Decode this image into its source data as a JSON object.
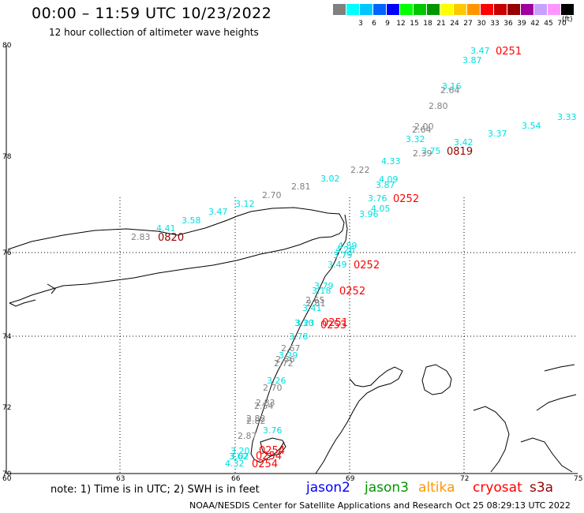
{
  "header": {
    "title": "00:00 – 11:59 UTC 10/23/2022",
    "subtitle": "12 hour collection of altimeter wave heights"
  },
  "legend": {
    "unit": "(ft)",
    "bins": [
      {
        "label": "",
        "color": "#808080"
      },
      {
        "label": "3",
        "color": "#00ffff"
      },
      {
        "label": "6",
        "color": "#00c8ff"
      },
      {
        "label": "9",
        "color": "#0064ff"
      },
      {
        "label": "12",
        "color": "#0000ff"
      },
      {
        "label": "15",
        "color": "#00ff00"
      },
      {
        "label": "18",
        "color": "#00c800"
      },
      {
        "label": "21",
        "color": "#009600"
      },
      {
        "label": "24",
        "color": "#ffff00"
      },
      {
        "label": "27",
        "color": "#ffc800"
      },
      {
        "label": "30",
        "color": "#ff9600"
      },
      {
        "label": "33",
        "color": "#ff0000"
      },
      {
        "label": "36",
        "color": "#c80000"
      },
      {
        "label": "39",
        "color": "#960000"
      },
      {
        "label": "42",
        "color": "#a000a0"
      },
      {
        "label": "45",
        "color": "#c8a0ff"
      },
      {
        "label": "70",
        "color": "#ff96ff"
      },
      {
        "label": "",
        "color": "#000000"
      }
    ]
  },
  "axes": {
    "lat_labels": [
      "80",
      "78",
      "76",
      "74",
      "72",
      "70"
    ],
    "lon_labels": [
      "60",
      "63",
      "66",
      "69",
      "72",
      "75"
    ]
  },
  "wave_heights": [
    {
      "v": "3.47",
      "c": "#00e0e0"
    },
    {
      "v": "3.87",
      "c": "#00e0e0"
    },
    {
      "v": "3.16",
      "c": "#00e0e0"
    },
    {
      "v": "2.64",
      "c": "#808080"
    },
    {
      "v": "2.80",
      "c": "#808080"
    },
    {
      "v": "3.33",
      "c": "#00e0e0"
    },
    {
      "v": "3.54",
      "c": "#00e0e0"
    },
    {
      "v": "2.00",
      "c": "#808080"
    },
    {
      "v": "2.64",
      "c": "#808080"
    },
    {
      "v": "3.32",
      "c": "#00e0e0"
    },
    {
      "v": "3.37",
      "c": "#00e0e0"
    },
    {
      "v": "3.42",
      "c": "#00e0e0"
    },
    {
      "v": "2.39",
      "c": "#808080"
    },
    {
      "v": "3.75",
      "c": "#00e0e0"
    },
    {
      "v": "4.33",
      "c": "#00e0e0"
    },
    {
      "v": "2.22",
      "c": "#808080"
    },
    {
      "v": "3.02",
      "c": "#00e0e0"
    },
    {
      "v": "4.09",
      "c": "#00e0e0"
    },
    {
      "v": "3.87",
      "c": "#00e0e0"
    },
    {
      "v": "2.81",
      "c": "#808080"
    },
    {
      "v": "2.70",
      "c": "#808080"
    },
    {
      "v": "3.76",
      "c": "#00e0e0"
    },
    {
      "v": "4.05",
      "c": "#00e0e0"
    },
    {
      "v": "3.96",
      "c": "#00e0e0"
    },
    {
      "v": "3.12",
      "c": "#00e0e0"
    },
    {
      "v": "3.47",
      "c": "#00e0e0"
    },
    {
      "v": "3.58",
      "c": "#00e0e0"
    },
    {
      "v": "4.41",
      "c": "#00e0e0"
    },
    {
      "v": "2.83",
      "c": "#808080"
    },
    {
      "v": "4.89",
      "c": "#00e0e0"
    },
    {
      "v": "4.26",
      "c": "#00e0e0"
    },
    {
      "v": "3.79",
      "c": "#00e0e0"
    },
    {
      "v": "3.49",
      "c": "#00e0e0"
    },
    {
      "v": "3.79",
      "c": "#00e0e0"
    },
    {
      "v": "3.18",
      "c": "#00e0e0"
    },
    {
      "v": "2.65",
      "c": "#808080"
    },
    {
      "v": "2.81",
      "c": "#808080"
    },
    {
      "v": "3.41",
      "c": "#00e0e0"
    },
    {
      "v": "3.30",
      "c": "#00e0e0"
    },
    {
      "v": "3.23",
      "c": "#00e0e0"
    },
    {
      "v": "3.78",
      "c": "#00e0e0"
    },
    {
      "v": "2.67",
      "c": "#808080"
    },
    {
      "v": "3.29",
      "c": "#00e0e0"
    },
    {
      "v": "2.56",
      "c": "#808080"
    },
    {
      "v": "2.72",
      "c": "#808080"
    },
    {
      "v": "3.26",
      "c": "#00e0e0"
    },
    {
      "v": "2.70",
      "c": "#808080"
    },
    {
      "v": "2.83",
      "c": "#808080"
    },
    {
      "v": "2.54",
      "c": "#808080"
    },
    {
      "v": "2.82",
      "c": "#808080"
    },
    {
      "v": "2.82",
      "c": "#808080"
    },
    {
      "v": "3.76",
      "c": "#00e0e0"
    },
    {
      "v": "2.87",
      "c": "#808080"
    },
    {
      "v": "3.20",
      "c": "#00e0e0"
    },
    {
      "v": "3.02",
      "c": "#00e0e0"
    },
    {
      "v": "3.62",
      "c": "#00e0e0"
    },
    {
      "v": "4.32",
      "c": "#00e0e0"
    }
  ],
  "pass_times": [
    {
      "t": "0251",
      "c": "#ff0000"
    },
    {
      "t": "0819",
      "c": "#960000"
    },
    {
      "t": "0252",
      "c": "#ff0000"
    },
    {
      "t": "0820",
      "c": "#960000"
    },
    {
      "t": "0252",
      "c": "#ff0000"
    },
    {
      "t": "0252",
      "c": "#ff0000"
    },
    {
      "t": "0251",
      "c": "#ff0000"
    },
    {
      "t": "0253",
      "c": "#ff0000"
    },
    {
      "t": "0254",
      "c": "#ff0000"
    },
    {
      "t": "0254",
      "c": "#ff0000"
    },
    {
      "t": "0254",
      "c": "#ff0000"
    }
  ],
  "footer": {
    "note": "note:  1) Time is in UTC;  2) SWH is in feet",
    "satellites": [
      {
        "name": "jason2",
        "color": "#0000ff"
      },
      {
        "name": "jason3",
        "color": "#009600"
      },
      {
        "name": "altika",
        "color": "#ff9600"
      },
      {
        "name": "cryosat",
        "color": "#ff0000"
      },
      {
        "name": "s3a",
        "color": "#960000"
      }
    ],
    "credit": "NOAA/NESDIS Center for Satellite Applications and Research     Oct 25 08:29:13 UTC 2022"
  }
}
